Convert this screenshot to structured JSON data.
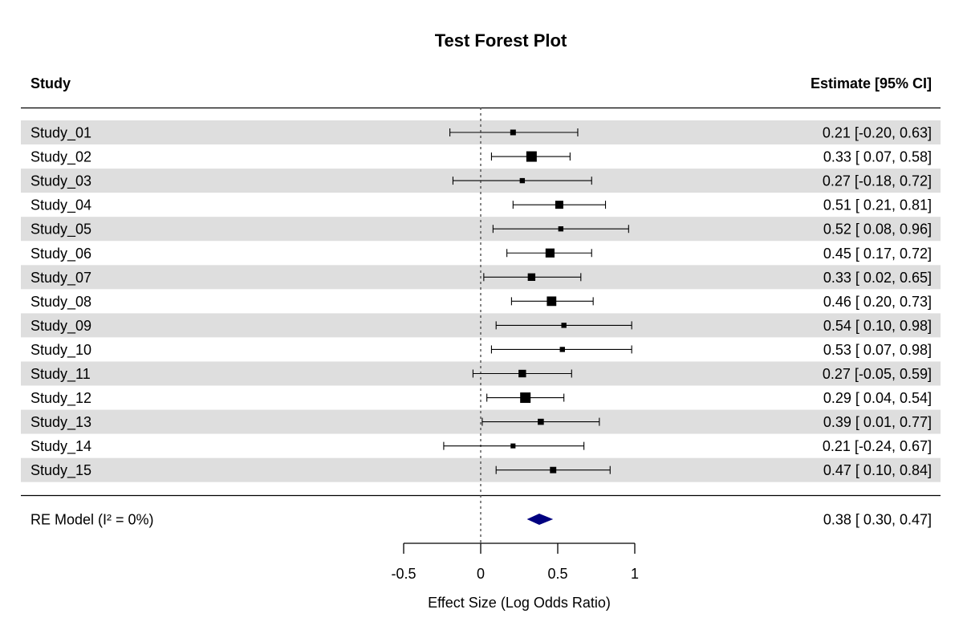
{
  "chart_data": {
    "type": "forest",
    "title": "Test Forest Plot",
    "header": {
      "left": "Study",
      "right": "Estimate [95% CI]"
    },
    "xlabel": "Effect Size (Log Odds Ratio)",
    "xlim": [
      -0.5,
      1
    ],
    "xticks": [
      -0.5,
      0,
      0.5,
      1
    ],
    "xtick_labels": [
      "-0.5",
      "0",
      "0.5",
      "1"
    ],
    "reference_line": 0,
    "row_shading": "alternating",
    "studies": [
      {
        "label": "Study_01",
        "estimate": 0.21,
        "lower": -0.2,
        "upper": 0.63,
        "weight": 1.0,
        "ci_text": "0.21 [-0.20, 0.63]"
      },
      {
        "label": "Study_02",
        "estimate": 0.33,
        "lower": 0.07,
        "upper": 0.58,
        "weight": 3.0,
        "ci_text": "0.33 [ 0.07, 0.58]"
      },
      {
        "label": "Study_03",
        "estimate": 0.27,
        "lower": -0.18,
        "upper": 0.72,
        "weight": 0.8,
        "ci_text": "0.27 [-0.18, 0.72]"
      },
      {
        "label": "Study_04",
        "estimate": 0.51,
        "lower": 0.21,
        "upper": 0.81,
        "weight": 2.0,
        "ci_text": "0.51 [ 0.21, 0.81]"
      },
      {
        "label": "Study_05",
        "estimate": 0.52,
        "lower": 0.08,
        "upper": 0.96,
        "weight": 0.8,
        "ci_text": "0.52 [ 0.08, 0.96]"
      },
      {
        "label": "Study_06",
        "estimate": 0.45,
        "lower": 0.17,
        "upper": 0.72,
        "weight": 2.4,
        "ci_text": "0.45 [ 0.17, 0.72]"
      },
      {
        "label": "Study_07",
        "estimate": 0.33,
        "lower": 0.02,
        "upper": 0.65,
        "weight": 1.8,
        "ci_text": "0.33 [ 0.02, 0.65]"
      },
      {
        "label": "Study_08",
        "estimate": 0.46,
        "lower": 0.2,
        "upper": 0.73,
        "weight": 2.6,
        "ci_text": "0.46 [ 0.20, 0.73]"
      },
      {
        "label": "Study_09",
        "estimate": 0.54,
        "lower": 0.1,
        "upper": 0.98,
        "weight": 0.8,
        "ci_text": "0.54 [ 0.10, 0.98]"
      },
      {
        "label": "Study_10",
        "estimate": 0.53,
        "lower": 0.07,
        "upper": 0.98,
        "weight": 0.8,
        "ci_text": "0.53 [ 0.07, 0.98]"
      },
      {
        "label": "Study_11",
        "estimate": 0.27,
        "lower": -0.05,
        "upper": 0.59,
        "weight": 1.8,
        "ci_text": "0.27 [-0.05, 0.59]"
      },
      {
        "label": "Study_12",
        "estimate": 0.29,
        "lower": 0.04,
        "upper": 0.54,
        "weight": 3.0,
        "ci_text": "0.29 [ 0.04, 0.54]"
      },
      {
        "label": "Study_13",
        "estimate": 0.39,
        "lower": 0.01,
        "upper": 0.77,
        "weight": 1.2,
        "ci_text": "0.39 [ 0.01, 0.77]"
      },
      {
        "label": "Study_14",
        "estimate": 0.21,
        "lower": -0.24,
        "upper": 0.67,
        "weight": 0.7,
        "ci_text": "0.21 [-0.24, 0.67]"
      },
      {
        "label": "Study_15",
        "estimate": 0.47,
        "lower": 0.1,
        "upper": 0.84,
        "weight": 1.3,
        "ci_text": "0.47 [ 0.10, 0.84]"
      }
    ],
    "summary": {
      "label": "RE Model (I² = 0%)",
      "estimate": 0.38,
      "lower": 0.3,
      "upper": 0.47,
      "ci_text": "0.38 [ 0.30, 0.47]"
    }
  },
  "colors": {
    "row_shade": "#dedede",
    "summary_diamond": "#000080",
    "ink": "#000000"
  }
}
